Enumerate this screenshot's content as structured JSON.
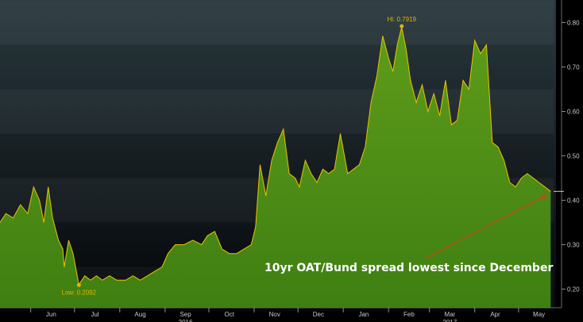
{
  "chart_data": {
    "type": "area",
    "title": "",
    "xlabel": "",
    "ylabel": "",
    "ylim": [
      0.15,
      0.85
    ],
    "y_ticks": [
      0.2,
      0.3,
      0.4,
      0.5,
      0.6,
      0.7,
      0.8
    ],
    "y_tick_labels": [
      "0.20",
      "0.30",
      "0.40",
      "0.50",
      "0.60",
      "0.70",
      "0.80"
    ],
    "x_range": [
      "2016-05-11",
      "2017-05-25"
    ],
    "x_month_labels": [
      "Jun",
      "Jul",
      "Aug",
      "Sep",
      "Oct",
      "Nov",
      "Dec",
      "Jan",
      "Feb",
      "Mar",
      "Apr",
      "May"
    ],
    "x_year_labels": [
      "2016",
      "2017"
    ],
    "grid": true,
    "colors": {
      "fill": "#3f7f12",
      "fill_top": "#5e9c1a",
      "line": "#e9c400",
      "annotation": "#e5b400",
      "callout_arrow": "#b4501e"
    },
    "series": [
      {
        "x": [
          "2016-05-11",
          "2016-05-15",
          "2016-05-20",
          "2016-05-25",
          "2016-05-30",
          "2016-06-03",
          "2016-06-07",
          "2016-06-10",
          "2016-06-13",
          "2016-06-16",
          "2016-06-20",
          "2016-06-23",
          "2016-06-24",
          "2016-06-27",
          "2016-06-30",
          "2016-07-04",
          "2016-07-08",
          "2016-07-12",
          "2016-07-16",
          "2016-07-20",
          "2016-07-25",
          "2016-07-30",
          "2016-08-05",
          "2016-08-10",
          "2016-08-15",
          "2016-08-20",
          "2016-08-25",
          "2016-08-30",
          "2016-09-03",
          "2016-09-08",
          "2016-09-14",
          "2016-09-20",
          "2016-09-26",
          "2016-09-30",
          "2016-10-05",
          "2016-10-10",
          "2016-10-15",
          "2016-10-20",
          "2016-10-25",
          "2016-10-30",
          "2016-11-02",
          "2016-11-05",
          "2016-11-09",
          "2016-11-13",
          "2016-11-17",
          "2016-11-21",
          "2016-11-25",
          "2016-11-29",
          "2016-12-02",
          "2016-12-06",
          "2016-12-10",
          "2016-12-14",
          "2016-12-18",
          "2016-12-22",
          "2016-12-26",
          "2016-12-30",
          "2017-01-04",
          "2017-01-08",
          "2017-01-12",
          "2017-01-16",
          "2017-01-20",
          "2017-01-24",
          "2017-01-28",
          "2017-02-01",
          "2017-02-04",
          "2017-02-07",
          "2017-02-10",
          "2017-02-13",
          "2017-02-16",
          "2017-02-20",
          "2017-02-24",
          "2017-02-28",
          "2017-03-04",
          "2017-03-08",
          "2017-03-12",
          "2017-03-16",
          "2017-03-20",
          "2017-03-24",
          "2017-03-28",
          "2017-04-01",
          "2017-04-05",
          "2017-04-09",
          "2017-04-13",
          "2017-04-17",
          "2017-04-21",
          "2017-04-25",
          "2017-04-29",
          "2017-05-03",
          "2017-05-07",
          "2017-05-11",
          "2017-05-15",
          "2017-05-19",
          "2017-05-23"
        ],
        "values": [
          0.35,
          0.37,
          0.36,
          0.39,
          0.37,
          0.43,
          0.4,
          0.35,
          0.43,
          0.36,
          0.31,
          0.29,
          0.25,
          0.31,
          0.28,
          0.21,
          0.23,
          0.22,
          0.23,
          0.22,
          0.23,
          0.22,
          0.22,
          0.23,
          0.22,
          0.23,
          0.24,
          0.25,
          0.28,
          0.3,
          0.3,
          0.31,
          0.3,
          0.32,
          0.33,
          0.29,
          0.28,
          0.28,
          0.29,
          0.3,
          0.34,
          0.48,
          0.41,
          0.49,
          0.53,
          0.56,
          0.46,
          0.45,
          0.43,
          0.49,
          0.46,
          0.44,
          0.47,
          0.46,
          0.47,
          0.55,
          0.46,
          0.47,
          0.48,
          0.52,
          0.62,
          0.68,
          0.77,
          0.72,
          0.69,
          0.75,
          0.79,
          0.74,
          0.67,
          0.62,
          0.66,
          0.6,
          0.64,
          0.59,
          0.67,
          0.57,
          0.58,
          0.67,
          0.65,
          0.76,
          0.73,
          0.75,
          0.53,
          0.52,
          0.49,
          0.44,
          0.43,
          0.45,
          0.46,
          0.45,
          0.44,
          0.43,
          0.42
        ]
      }
    ],
    "annotations": [
      {
        "label": "Hi: 0.7919",
        "x": "2017-02-10",
        "y": 0.7919
      },
      {
        "label": "Low: 0.2092",
        "x": "2016-07-04",
        "y": 0.2092
      }
    ],
    "callout": {
      "text": "10yr OAT/Bund spread lowest since December",
      "arrow_to": {
        "x": "2017-05-23",
        "y": 0.42
      }
    },
    "last_value_marker": 0.42
  }
}
